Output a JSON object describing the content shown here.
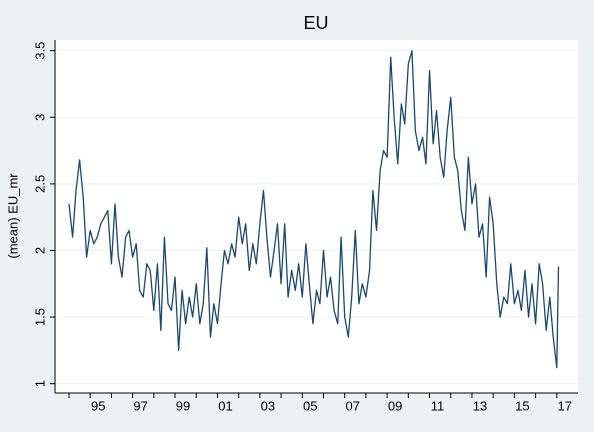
{
  "chart_data": {
    "type": "line",
    "title": "EU",
    "ylabel": "(mean) EU_mr",
    "color": "#1a476f",
    "grid": true,
    "xlim": [
      1993.34,
      2018.0
    ],
    "ylim": [
      0.93,
      3.58
    ],
    "yticks": [
      1,
      1.5,
      2,
      2.5,
      3,
      3.5
    ],
    "xticks": [
      {
        "value": 1995,
        "label": "95"
      },
      {
        "value": 1997,
        "label": "97"
      },
      {
        "value": 1999,
        "label": "99"
      },
      {
        "value": 2001,
        "label": "01"
      },
      {
        "value": 2003,
        "label": "03"
      },
      {
        "value": 2005,
        "label": "05"
      },
      {
        "value": 2007,
        "label": "07"
      },
      {
        "value": 2009,
        "label": "09"
      },
      {
        "value": 2011,
        "label": "11"
      },
      {
        "value": 2013,
        "label": "13"
      },
      {
        "value": 2015,
        "label": "15"
      },
      {
        "value": 2017,
        "label": "17"
      }
    ],
    "xminorticks": [
      1994,
      1996,
      1998,
      2000,
      2002,
      2004,
      2006,
      2008,
      2010,
      2012,
      2014,
      2016
    ],
    "x": [
      1994.0,
      1994.17,
      1994.33,
      1994.5,
      1994.67,
      1994.83,
      1995.0,
      1995.17,
      1995.33,
      1995.5,
      1995.67,
      1995.83,
      1996.0,
      1996.17,
      1996.33,
      1996.5,
      1996.67,
      1996.83,
      1997.0,
      1997.17,
      1997.33,
      1997.5,
      1997.67,
      1997.83,
      1998.0,
      1998.17,
      1998.33,
      1998.5,
      1998.67,
      1998.83,
      1999.0,
      1999.17,
      1999.33,
      1999.5,
      1999.67,
      1999.83,
      2000.0,
      2000.17,
      2000.33,
      2000.5,
      2000.67,
      2000.83,
      2001.0,
      2001.17,
      2001.33,
      2001.5,
      2001.67,
      2001.83,
      2002.0,
      2002.17,
      2002.33,
      2002.5,
      2002.67,
      2002.83,
      2003.0,
      2003.17,
      2003.33,
      2003.5,
      2003.67,
      2003.83,
      2004.0,
      2004.17,
      2004.33,
      2004.5,
      2004.67,
      2004.83,
      2005.0,
      2005.17,
      2005.33,
      2005.5,
      2005.67,
      2005.83,
      2006.0,
      2006.17,
      2006.33,
      2006.5,
      2006.67,
      2006.83,
      2007.0,
      2007.17,
      2007.33,
      2007.5,
      2007.67,
      2007.83,
      2008.0,
      2008.17,
      2008.33,
      2008.5,
      2008.67,
      2008.83,
      2009.0,
      2009.17,
      2009.33,
      2009.5,
      2009.67,
      2009.83,
      2010.0,
      2010.17,
      2010.33,
      2010.5,
      2010.67,
      2010.83,
      2011.0,
      2011.17,
      2011.33,
      2011.5,
      2011.67,
      2011.83,
      2012.0,
      2012.17,
      2012.33,
      2012.5,
      2012.67,
      2012.83,
      2013.0,
      2013.17,
      2013.33,
      2013.5,
      2013.67,
      2013.83,
      2014.0,
      2014.17,
      2014.33,
      2014.5,
      2014.67,
      2014.83,
      2015.0,
      2015.17,
      2015.33,
      2015.5,
      2015.67,
      2015.83,
      2016.0,
      2016.17,
      2016.33,
      2016.5,
      2016.67,
      2016.83,
      2017.0,
      2017.08
    ],
    "values": [
      2.35,
      2.1,
      2.45,
      2.68,
      2.4,
      1.95,
      2.15,
      2.05,
      2.1,
      2.2,
      2.25,
      2.3,
      1.9,
      2.35,
      1.95,
      1.8,
      2.1,
      2.15,
      1.95,
      2.05,
      1.7,
      1.65,
      1.9,
      1.85,
      1.55,
      1.9,
      1.4,
      2.1,
      1.6,
      1.55,
      1.8,
      1.25,
      1.7,
      1.45,
      1.65,
      1.5,
      1.75,
      1.45,
      1.6,
      2.02,
      1.35,
      1.6,
      1.45,
      1.75,
      2.0,
      1.9,
      2.05,
      1.95,
      2.25,
      2.05,
      2.2,
      1.85,
      2.05,
      1.9,
      2.2,
      2.45,
      2.1,
      1.8,
      2.0,
      2.2,
      1.75,
      2.2,
      1.65,
      1.85,
      1.7,
      1.9,
      1.65,
      2.05,
      1.75,
      1.45,
      1.7,
      1.6,
      2.0,
      1.65,
      1.8,
      1.55,
      1.45,
      2.1,
      1.5,
      1.35,
      1.65,
      2.15,
      1.6,
      1.75,
      1.65,
      1.85,
      2.45,
      2.15,
      2.6,
      2.75,
      2.7,
      3.45,
      3.0,
      2.65,
      3.1,
      2.95,
      3.4,
      3.5,
      2.9,
      2.75,
      2.85,
      2.65,
      3.35,
      2.8,
      3.05,
      2.7,
      2.55,
      2.9,
      3.15,
      2.7,
      2.6,
      2.3,
      2.15,
      2.7,
      2.35,
      2.5,
      2.1,
      2.2,
      1.8,
      2.4,
      2.2,
      1.75,
      1.5,
      1.65,
      1.6,
      1.9,
      1.6,
      1.7,
      1.55,
      1.85,
      1.5,
      1.75,
      1.45,
      1.9,
      1.75,
      1.4,
      1.65,
      1.35,
      1.12,
      1.88
    ]
  }
}
